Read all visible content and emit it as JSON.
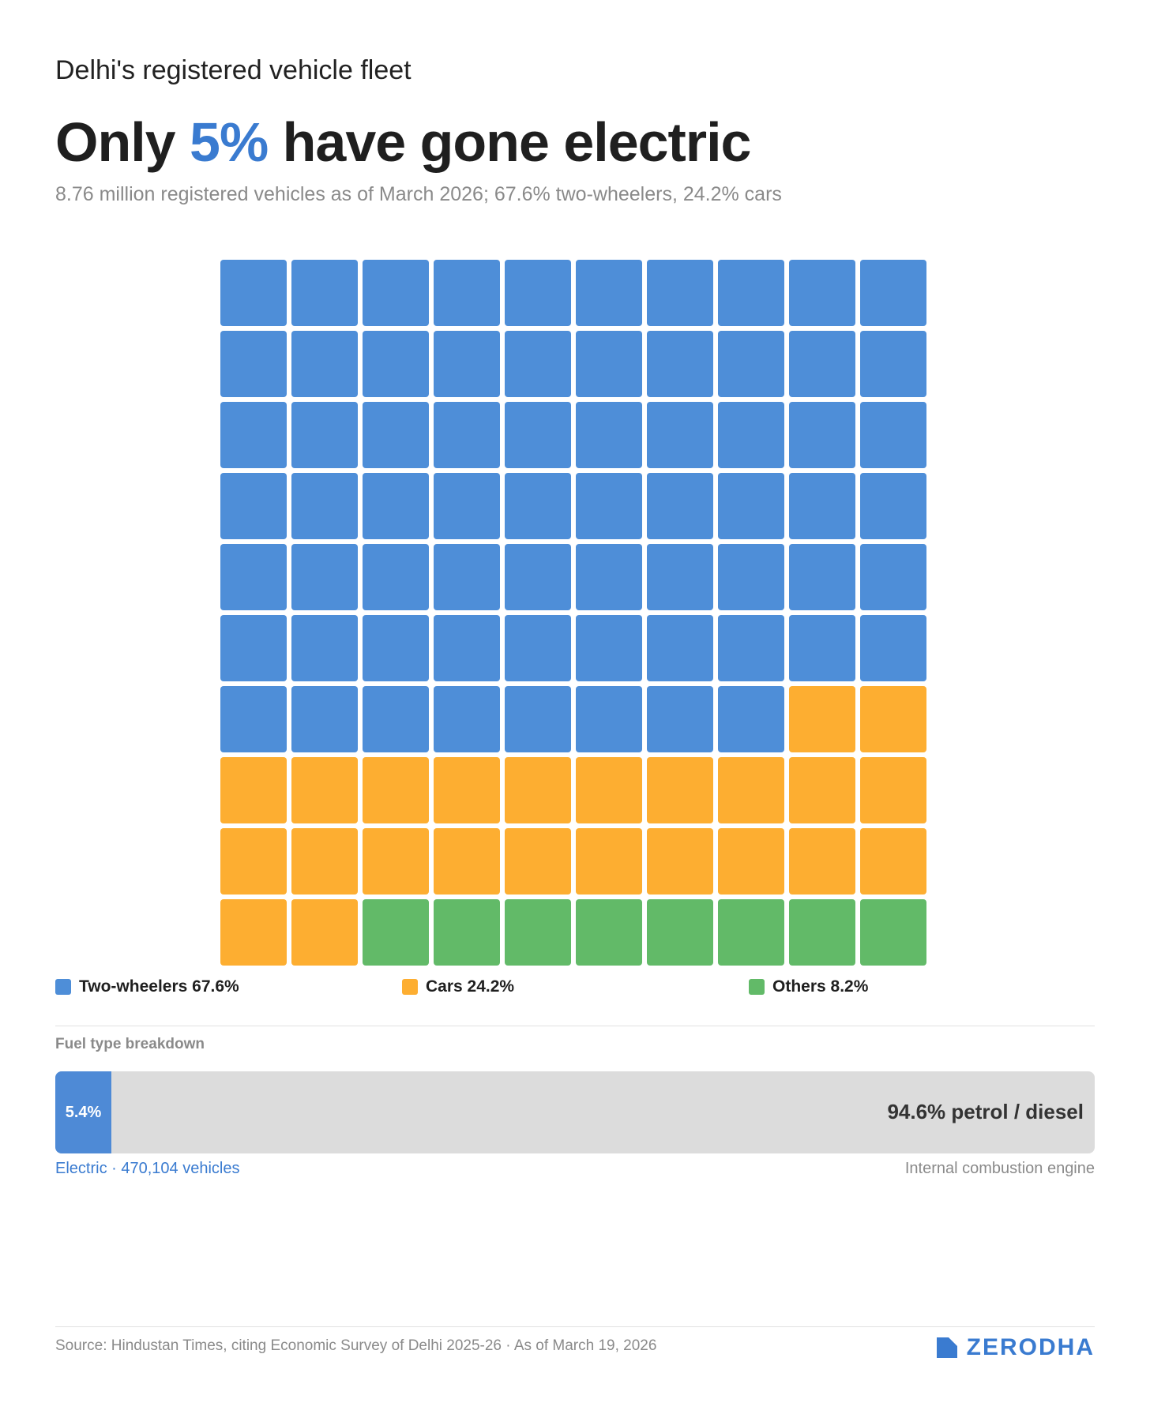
{
  "header": {
    "kicker": "Delhi's registered vehicle fleet",
    "headline_pre": "Only ",
    "headline_highlight": "5%",
    "headline_post": " have gone electric",
    "subtitle": "8.76 million registered vehicles as of March 2026; 67.6% two-wheelers, 24.2% cars"
  },
  "chart_data": {
    "type": "waffle",
    "grid": {
      "rows": 10,
      "cols": 10
    },
    "categories": [
      {
        "name": "Two-wheelers",
        "percent": 67.6,
        "squares": 68,
        "color": "#4e8ed8",
        "legend": "Two-wheelers 67.6%"
      },
      {
        "name": "Cars",
        "percent": 24.2,
        "squares": 24,
        "color": "#fdae31",
        "legend": "Cars 24.2%"
      },
      {
        "name": "Others",
        "percent": 8.2,
        "squares": 8,
        "color": "#62ba68",
        "legend": "Others 8.2%"
      }
    ]
  },
  "fuel": {
    "section_label": "Fuel type breakdown",
    "electric_percent": 5.4,
    "electric_label": "5.4%",
    "ice_label": "94.6% petrol / diesel",
    "electric_note": "Electric · 470,104 vehicles",
    "ice_note": "Internal combustion engine",
    "electric_color": "#4e8ad6",
    "track_color": "#dcdcdc"
  },
  "footer": {
    "source": "Source: Hindustan Times, citing Economic Survey of Delhi 2025-26 · As of March 19, 2026",
    "brand": "ZERODHA"
  }
}
